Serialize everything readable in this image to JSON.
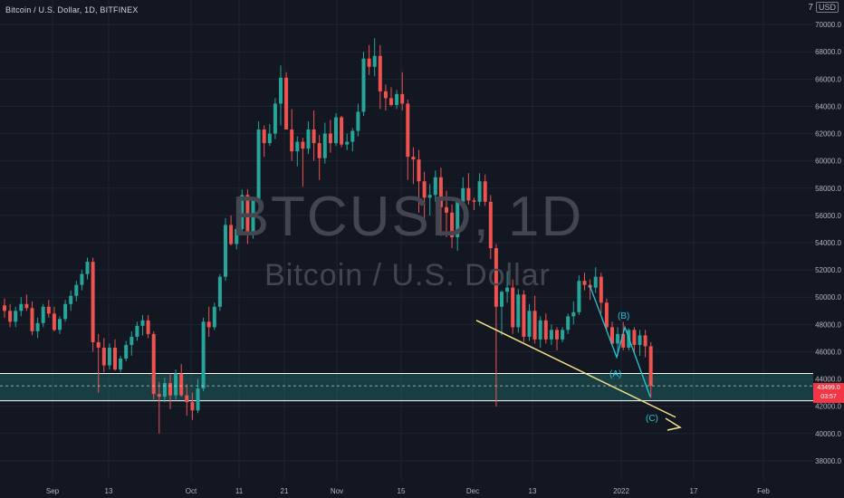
{
  "header": {
    "symbol_text": "Bitcoin / U.S. Dollar, 1D, BITFINEX",
    "currency_code": "USD",
    "currency_arrow": "7"
  },
  "watermark": {
    "ticker": "BTCUSD, 1D",
    "name": "Bitcoin / U.S. Dollar"
  },
  "colors": {
    "background": "#131722",
    "up": "#26a69a",
    "down": "#ef5350",
    "zone": "#26a69a",
    "trendline": "#f5e18a",
    "wave": "#26c6da"
  },
  "last_price": {
    "value": "43499.0",
    "countdown": "03:57"
  },
  "chart_data": {
    "type": "candlestick",
    "title": "Bitcoin / U.S. Dollar, 1D, BITFINEX",
    "ylim": [
      36600,
      71800
    ],
    "y_ticks": [
      "38000.0",
      "40000.0",
      "42000.0",
      "44000.0",
      "46000.0",
      "48000.0",
      "50000.0",
      "52000.0",
      "54000.0",
      "56000.0",
      "58000.0",
      "60000.0",
      "62000.0",
      "64000.0",
      "66000.0",
      "68000.0",
      "70000.0"
    ],
    "x_ticks": [
      "Sep",
      "13",
      "Oct",
      "11",
      "21",
      "Nov",
      "15",
      "Dec",
      "13",
      "2022",
      "17",
      "Feb"
    ],
    "grid": true,
    "ohlc": [
      [
        49400,
        49900,
        48500,
        49000
      ],
      [
        49000,
        49500,
        47800,
        48200
      ],
      [
        48200,
        49300,
        47800,
        49000
      ],
      [
        49000,
        50000,
        48600,
        49500
      ],
      [
        49500,
        50200,
        49000,
        49200
      ],
      [
        49200,
        49700,
        47200,
        47500
      ],
      [
        47500,
        48500,
        47000,
        48100
      ],
      [
        48100,
        49500,
        47800,
        49300
      ],
      [
        49300,
        49800,
        48500,
        48800
      ],
      [
        48800,
        49300,
        47500,
        47600
      ],
      [
        47600,
        48600,
        47300,
        48400
      ],
      [
        48400,
        49800,
        48200,
        49500
      ],
      [
        49500,
        50500,
        49000,
        50100
      ],
      [
        50100,
        51200,
        49700,
        50900
      ],
      [
        50900,
        52000,
        50500,
        51700
      ],
      [
        51700,
        52900,
        51300,
        52600
      ],
      [
        52600,
        52900,
        46000,
        46700
      ],
      [
        46700,
        47300,
        43000,
        46300
      ],
      [
        46300,
        47000,
        44500,
        45000
      ],
      [
        45000,
        46600,
        44700,
        46300
      ],
      [
        46300,
        46900,
        44600,
        44700
      ],
      [
        44700,
        45700,
        44500,
        45500
      ],
      [
        45500,
        46800,
        45300,
        46500
      ],
      [
        46500,
        47500,
        45700,
        47100
      ],
      [
        47100,
        48200,
        46800,
        47900
      ],
      [
        47900,
        48700,
        47200,
        48300
      ],
      [
        48300,
        48700,
        47000,
        47300
      ],
      [
        47300,
        47500,
        42500,
        42900
      ],
      [
        42900,
        43800,
        40000,
        42700
      ],
      [
        42700,
        44100,
        42300,
        43700
      ],
      [
        43700,
        44400,
        41800,
        42800
      ],
      [
        42800,
        44700,
        42500,
        44400
      ],
      [
        44400,
        45100,
        42700,
        42800
      ],
      [
        42800,
        43600,
        41300,
        42300
      ],
      [
        42300,
        43000,
        41000,
        41700
      ],
      [
        41700,
        44000,
        41500,
        43300
      ],
      [
        43300,
        48500,
        43100,
        48200
      ],
      [
        48200,
        49300,
        47100,
        47800
      ],
      [
        47800,
        49600,
        47600,
        49300
      ],
      [
        49300,
        51700,
        49000,
        51500
      ],
      [
        51500,
        55800,
        51200,
        55300
      ],
      [
        55300,
        56000,
        53800,
        53900
      ],
      [
        53900,
        55200,
        53500,
        55000
      ],
      [
        55000,
        57900,
        54700,
        57500
      ],
      [
        57500,
        57900,
        53900,
        54600
      ],
      [
        54600,
        57300,
        54300,
        57100
      ],
      [
        57100,
        62900,
        56900,
        62300
      ],
      [
        62300,
        62600,
        60300,
        61300
      ],
      [
        61300,
        62700,
        61100,
        62000
      ],
      [
        62000,
        64600,
        61600,
        64200
      ],
      [
        64200,
        67000,
        62600,
        66100
      ],
      [
        66100,
        66500,
        62400,
        62300
      ],
      [
        62300,
        63800,
        60000,
        60700
      ],
      [
        60700,
        61800,
        59600,
        61400
      ],
      [
        61400,
        61700,
        58100,
        60900
      ],
      [
        60900,
        62900,
        60500,
        62300
      ],
      [
        62300,
        63700,
        60000,
        61300
      ],
      [
        61300,
        61900,
        58600,
        60200
      ],
      [
        60200,
        62800,
        59800,
        62000
      ],
      [
        62000,
        63000,
        60600,
        61300
      ],
      [
        61300,
        63500,
        61100,
        63200
      ],
      [
        63200,
        63300,
        61000,
        61200
      ],
      [
        61200,
        62000,
        60800,
        61400
      ],
      [
        61400,
        62400,
        60700,
        62200
      ],
      [
        62200,
        64200,
        61800,
        63600
      ],
      [
        63600,
        68000,
        63300,
        67500
      ],
      [
        67500,
        68500,
        66300,
        66900
      ],
      [
        66900,
        69000,
        66200,
        67700
      ],
      [
        67700,
        68500,
        63800,
        65100
      ],
      [
        65100,
        65600,
        63700,
        64600
      ],
      [
        64600,
        65400,
        64000,
        64100
      ],
      [
        64100,
        65200,
        63800,
        64900
      ],
      [
        64900,
        66500,
        63700,
        64200
      ],
      [
        64200,
        64500,
        58600,
        60300
      ],
      [
        60300,
        61000,
        58300,
        60100
      ],
      [
        60100,
        60800,
        56200,
        58500
      ],
      [
        58500,
        59200,
        55600,
        57300
      ],
      [
        57300,
        58300,
        56000,
        57500
      ],
      [
        57500,
        59300,
        57000,
        58800
      ],
      [
        58800,
        59500,
        54500,
        56600
      ],
      [
        56600,
        57800,
        54400,
        56200
      ],
      [
        56200,
        56800,
        53600,
        54400
      ],
      [
        54400,
        57300,
        53400,
        57000
      ],
      [
        57000,
        58800,
        56800,
        58000
      ],
      [
        58000,
        59100,
        56800,
        57100
      ],
      [
        57100,
        57300,
        56400,
        57000
      ],
      [
        57000,
        59100,
        56700,
        58500
      ],
      [
        58500,
        59000,
        56700,
        57000
      ],
      [
        57000,
        57500,
        52800,
        53600
      ],
      [
        53600,
        53900,
        42000,
        49300
      ],
      [
        49300,
        50500,
        47200,
        50400
      ],
      [
        50400,
        51900,
        49600,
        50700
      ],
      [
        50700,
        51300,
        47300,
        47800
      ],
      [
        47800,
        50600,
        47400,
        50200
      ],
      [
        50200,
        50500,
        46700,
        47100
      ],
      [
        47100,
        49500,
        46800,
        49000
      ],
      [
        49000,
        50100,
        46600,
        46900
      ],
      [
        46900,
        48600,
        46300,
        48300
      ],
      [
        48300,
        48800,
        46600,
        46900
      ],
      [
        46900,
        48000,
        46500,
        47600
      ],
      [
        47600,
        47800,
        46100,
        46900
      ],
      [
        46900,
        47800,
        46700,
        47600
      ],
      [
        47600,
        48800,
        47300,
        48600
      ],
      [
        48600,
        49700,
        48000,
        48900
      ],
      [
        48900,
        51600,
        48700,
        51200
      ],
      [
        51200,
        51800,
        50500,
        50900
      ],
      [
        50900,
        51300,
        49800,
        50700
      ],
      [
        50700,
        52200,
        50300,
        51500
      ],
      [
        51500,
        51800,
        48800,
        49600
      ],
      [
        49600,
        49900,
        47600,
        47800
      ],
      [
        47800,
        48200,
        46500,
        46600
      ],
      [
        46600,
        47800,
        45700,
        47300
      ],
      [
        47300,
        48200,
        46100,
        46300
      ],
      [
        46300,
        47700,
        46100,
        47600
      ],
      [
        47600,
        47800,
        45900,
        46500
      ],
      [
        46500,
        47600,
        45700,
        47200
      ],
      [
        47200,
        47600,
        45600,
        46400
      ],
      [
        46400,
        46700,
        42600,
        43500
      ]
    ],
    "zone": [
      42400,
      44400
    ],
    "last_price_line": 43499,
    "annotations": [
      "(A)",
      "(B)",
      "(C)"
    ]
  }
}
